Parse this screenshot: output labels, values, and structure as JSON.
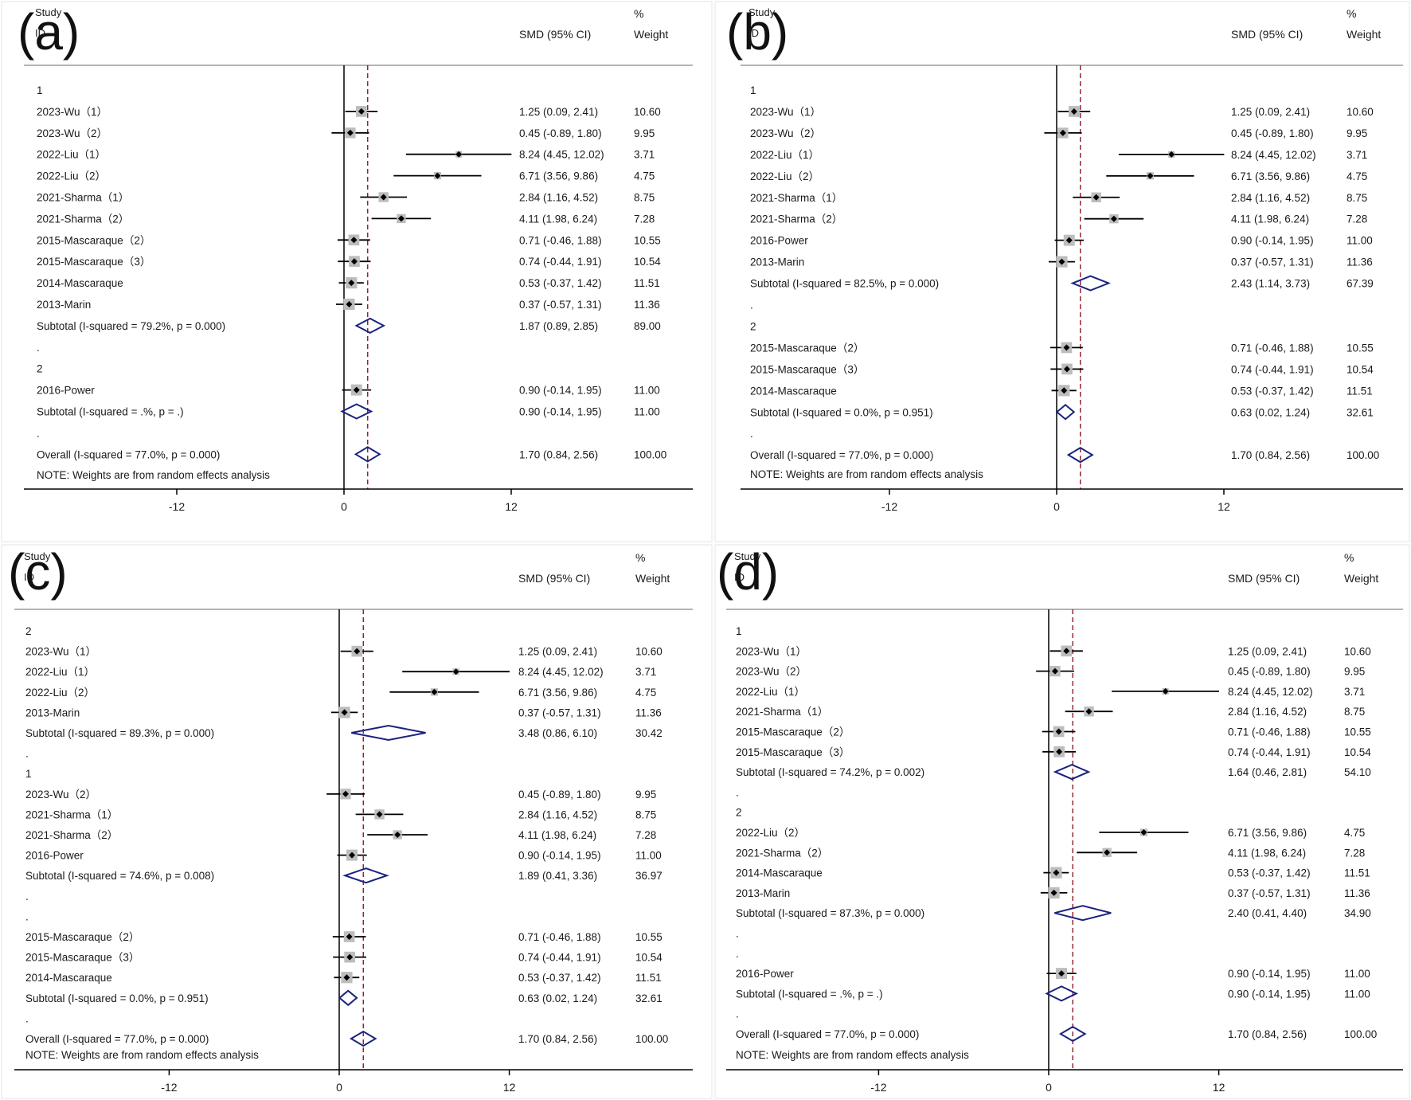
{
  "colors": {
    "diamond": "#1a237e",
    "ref_line": "#8b1a2b",
    "ci_line": "#000000",
    "box": "#bdbdbd",
    "axis": "#000000",
    "text": "#1a1a1a"
  },
  "chart_data": [
    {
      "type": "forest",
      "label": "(a)",
      "columns": {
        "study": "Study",
        "id": "ID",
        "effect": "SMD (95% CI)",
        "pct": "%",
        "weight": "Weight"
      },
      "xaxis": {
        "ticks": [
          -12,
          0,
          12
        ],
        "xlim": [
          -22,
          26
        ],
        "overall_ref": 1.7
      },
      "note": "NOTE: Weights are from random effects analysis",
      "rows": [
        {
          "kind": "group",
          "label": "1"
        },
        {
          "kind": "study",
          "label": "2023-Wu（1）",
          "est": 1.25,
          "lo": 0.09,
          "hi": 2.41,
          "effect_text": "1.25 (0.09, 2.41)",
          "weight": "10.60",
          "w": 10.6
        },
        {
          "kind": "study",
          "label": "2023-Wu（2）",
          "est": 0.45,
          "lo": -0.89,
          "hi": 1.8,
          "effect_text": "0.45 (-0.89, 1.80)",
          "weight": "9.95",
          "w": 9.95
        },
        {
          "kind": "study",
          "label": "2022-Liu（1）",
          "est": 8.24,
          "lo": 4.45,
          "hi": 12.02,
          "effect_text": "8.24 (4.45, 12.02)",
          "weight": "3.71",
          "w": 3.71
        },
        {
          "kind": "study",
          "label": "2022-Liu（2）",
          "est": 6.71,
          "lo": 3.56,
          "hi": 9.86,
          "effect_text": "6.71 (3.56, 9.86)",
          "weight": "4.75",
          "w": 4.75
        },
        {
          "kind": "study",
          "label": "2021-Sharma（1）",
          "est": 2.84,
          "lo": 1.16,
          "hi": 4.52,
          "effect_text": "2.84 (1.16, 4.52)",
          "weight": "8.75",
          "w": 8.75
        },
        {
          "kind": "study",
          "label": "2021-Sharma（2）",
          "est": 4.11,
          "lo": 1.98,
          "hi": 6.24,
          "effect_text": "4.11 (1.98, 6.24)",
          "weight": "7.28",
          "w": 7.28
        },
        {
          "kind": "study",
          "label": "2015-Mascaraque（2）",
          "est": 0.71,
          "lo": -0.46,
          "hi": 1.88,
          "effect_text": "0.71 (-0.46, 1.88)",
          "weight": "10.55",
          "w": 10.55
        },
        {
          "kind": "study",
          "label": "2015-Mascaraque（3）",
          "est": 0.74,
          "lo": -0.44,
          "hi": 1.91,
          "effect_text": "0.74 (-0.44, 1.91)",
          "weight": "10.54",
          "w": 10.54
        },
        {
          "kind": "study",
          "label": "2014-Mascaraque",
          "est": 0.53,
          "lo": -0.37,
          "hi": 1.42,
          "effect_text": "0.53 (-0.37, 1.42)",
          "weight": "11.51",
          "w": 11.51
        },
        {
          "kind": "study",
          "label": "2013-Marin",
          "est": 0.37,
          "lo": -0.57,
          "hi": 1.31,
          "effect_text": "0.37 (-0.57, 1.31)",
          "weight": "11.36",
          "w": 11.36
        },
        {
          "kind": "subtotal",
          "label": "Subtotal  (I-squared = 79.2%, p = 0.000)",
          "est": 1.87,
          "lo": 0.89,
          "hi": 2.85,
          "effect_text": "1.87 (0.89, 2.85)",
          "weight": "89.00"
        },
        {
          "kind": "dot",
          "label": "."
        },
        {
          "kind": "group",
          "label": "2"
        },
        {
          "kind": "study",
          "label": "2016-Power",
          "est": 0.9,
          "lo": -0.14,
          "hi": 1.95,
          "effect_text": "0.90 (-0.14, 1.95)",
          "weight": "11.00",
          "w": 11.0
        },
        {
          "kind": "subtotal",
          "label": "Subtotal  (I-squared = .%, p = .)",
          "est": 0.9,
          "lo": -0.14,
          "hi": 1.95,
          "effect_text": "0.90 (-0.14, 1.95)",
          "weight": "11.00"
        },
        {
          "kind": "dot",
          "label": "."
        },
        {
          "kind": "overall",
          "label": "Overall  (I-squared = 77.0%, p = 0.000)",
          "est": 1.7,
          "lo": 0.84,
          "hi": 2.56,
          "effect_text": "1.70 (0.84, 2.56)",
          "weight": "100.00"
        }
      ]
    },
    {
      "type": "forest",
      "label": "(b)",
      "columns": {
        "study": "Study",
        "id": "ID",
        "effect": "SMD (95% CI)",
        "pct": "%",
        "weight": "Weight"
      },
      "xaxis": {
        "ticks": [
          -12,
          0,
          12
        ],
        "xlim": [
          -22,
          26
        ],
        "overall_ref": 1.7
      },
      "note": "NOTE: Weights are from random effects analysis",
      "rows": [
        {
          "kind": "group",
          "label": "1"
        },
        {
          "kind": "study",
          "label": "2023-Wu（1）",
          "est": 1.25,
          "lo": 0.09,
          "hi": 2.41,
          "effect_text": "1.25 (0.09, 2.41)",
          "weight": "10.60",
          "w": 10.6
        },
        {
          "kind": "study",
          "label": "2023-Wu（2）",
          "est": 0.45,
          "lo": -0.89,
          "hi": 1.8,
          "effect_text": "0.45 (-0.89, 1.80)",
          "weight": "9.95",
          "w": 9.95
        },
        {
          "kind": "study",
          "label": "2022-Liu（1）",
          "est": 8.24,
          "lo": 4.45,
          "hi": 12.02,
          "effect_text": "8.24 (4.45, 12.02)",
          "weight": "3.71",
          "w": 3.71
        },
        {
          "kind": "study",
          "label": "2022-Liu（2）",
          "est": 6.71,
          "lo": 3.56,
          "hi": 9.86,
          "effect_text": "6.71 (3.56, 9.86)",
          "weight": "4.75",
          "w": 4.75
        },
        {
          "kind": "study",
          "label": "2021-Sharma（1）",
          "est": 2.84,
          "lo": 1.16,
          "hi": 4.52,
          "effect_text": "2.84 (1.16, 4.52)",
          "weight": "8.75",
          "w": 8.75
        },
        {
          "kind": "study",
          "label": "2021-Sharma（2）",
          "est": 4.11,
          "lo": 1.98,
          "hi": 6.24,
          "effect_text": "4.11 (1.98, 6.24)",
          "weight": "7.28",
          "w": 7.28
        },
        {
          "kind": "study",
          "label": "2016-Power",
          "est": 0.9,
          "lo": -0.14,
          "hi": 1.95,
          "effect_text": "0.90 (-0.14, 1.95)",
          "weight": "11.00",
          "w": 11.0
        },
        {
          "kind": "study",
          "label": "2013-Marin",
          "est": 0.37,
          "lo": -0.57,
          "hi": 1.31,
          "effect_text": "0.37 (-0.57, 1.31)",
          "weight": "11.36",
          "w": 11.36
        },
        {
          "kind": "subtotal",
          "label": "Subtotal  (I-squared = 82.5%, p = 0.000)",
          "est": 2.43,
          "lo": 1.14,
          "hi": 3.73,
          "effect_text": "2.43 (1.14, 3.73)",
          "weight": "67.39"
        },
        {
          "kind": "dot",
          "label": "."
        },
        {
          "kind": "group",
          "label": "2"
        },
        {
          "kind": "study",
          "label": "2015-Mascaraque（2）",
          "est": 0.71,
          "lo": -0.46,
          "hi": 1.88,
          "effect_text": "0.71 (-0.46, 1.88)",
          "weight": "10.55",
          "w": 10.55
        },
        {
          "kind": "study",
          "label": "2015-Mascaraque（3）",
          "est": 0.74,
          "lo": -0.44,
          "hi": 1.91,
          "effect_text": "0.74 (-0.44, 1.91)",
          "weight": "10.54",
          "w": 10.54
        },
        {
          "kind": "study",
          "label": "2014-Mascaraque",
          "est": 0.53,
          "lo": -0.37,
          "hi": 1.42,
          "effect_text": "0.53 (-0.37, 1.42)",
          "weight": "11.51",
          "w": 11.51
        },
        {
          "kind": "subtotal",
          "label": "Subtotal  (I-squared = 0.0%, p = 0.951)",
          "est": 0.63,
          "lo": 0.02,
          "hi": 1.24,
          "effect_text": "0.63 (0.02, 1.24)",
          "weight": "32.61"
        },
        {
          "kind": "dot",
          "label": "."
        },
        {
          "kind": "overall",
          "label": "Overall  (I-squared = 77.0%, p = 0.000)",
          "est": 1.7,
          "lo": 0.84,
          "hi": 2.56,
          "effect_text": "1.70 (0.84, 2.56)",
          "weight": "100.00"
        }
      ]
    },
    {
      "type": "forest",
      "label": "(c)",
      "columns": {
        "study": "Study",
        "id": "ID",
        "effect": "SMD (95% CI)",
        "pct": "%",
        "weight": "Weight"
      },
      "xaxis": {
        "ticks": [
          -12,
          0,
          12
        ],
        "xlim": [
          -22,
          26
        ],
        "overall_ref": 1.7
      },
      "note": "NOTE: Weights are from random effects analysis",
      "rows": [
        {
          "kind": "group",
          "label": "2"
        },
        {
          "kind": "study",
          "label": "2023-Wu（1）",
          "est": 1.25,
          "lo": 0.09,
          "hi": 2.41,
          "effect_text": "1.25 (0.09, 2.41)",
          "weight": "10.60",
          "w": 10.6
        },
        {
          "kind": "study",
          "label": "2022-Liu（1）",
          "est": 8.24,
          "lo": 4.45,
          "hi": 12.02,
          "effect_text": "8.24 (4.45, 12.02)",
          "weight": "3.71",
          "w": 3.71
        },
        {
          "kind": "study",
          "label": "2022-Liu（2）",
          "est": 6.71,
          "lo": 3.56,
          "hi": 9.86,
          "effect_text": "6.71 (3.56, 9.86)",
          "weight": "4.75",
          "w": 4.75
        },
        {
          "kind": "study",
          "label": "2013-Marin",
          "est": 0.37,
          "lo": -0.57,
          "hi": 1.31,
          "effect_text": "0.37 (-0.57, 1.31)",
          "weight": "11.36",
          "w": 11.36
        },
        {
          "kind": "subtotal",
          "label": "Subtotal  (I-squared = 89.3%, p = 0.000)",
          "est": 3.48,
          "lo": 0.86,
          "hi": 6.1,
          "effect_text": "3.48 (0.86, 6.10)",
          "weight": "30.42"
        },
        {
          "kind": "dot",
          "label": "."
        },
        {
          "kind": "group",
          "label": "1"
        },
        {
          "kind": "study",
          "label": "2023-Wu（2）",
          "est": 0.45,
          "lo": -0.89,
          "hi": 1.8,
          "effect_text": "0.45 (-0.89, 1.80)",
          "weight": "9.95",
          "w": 9.95
        },
        {
          "kind": "study",
          "label": "2021-Sharma（1）",
          "est": 2.84,
          "lo": 1.16,
          "hi": 4.52,
          "effect_text": "2.84 (1.16, 4.52)",
          "weight": "8.75",
          "w": 8.75
        },
        {
          "kind": "study",
          "label": "2021-Sharma（2）",
          "est": 4.11,
          "lo": 1.98,
          "hi": 6.24,
          "effect_text": "4.11 (1.98, 6.24)",
          "weight": "7.28",
          "w": 7.28
        },
        {
          "kind": "study",
          "label": "2016-Power",
          "est": 0.9,
          "lo": -0.14,
          "hi": 1.95,
          "effect_text": "0.90 (-0.14, 1.95)",
          "weight": "11.00",
          "w": 11.0
        },
        {
          "kind": "subtotal",
          "label": "Subtotal  (I-squared = 74.6%, p = 0.008)",
          "est": 1.89,
          "lo": 0.41,
          "hi": 3.36,
          "effect_text": "1.89 (0.41, 3.36)",
          "weight": "36.97"
        },
        {
          "kind": "dot",
          "label": "."
        },
        {
          "kind": "dot",
          "label": "."
        },
        {
          "kind": "study",
          "label": "2015-Mascaraque（2）",
          "est": 0.71,
          "lo": -0.46,
          "hi": 1.88,
          "effect_text": "0.71 (-0.46, 1.88)",
          "weight": "10.55",
          "w": 10.55
        },
        {
          "kind": "study",
          "label": "2015-Mascaraque（3）",
          "est": 0.74,
          "lo": -0.44,
          "hi": 1.91,
          "effect_text": "0.74 (-0.44, 1.91)",
          "weight": "10.54",
          "w": 10.54
        },
        {
          "kind": "study",
          "label": "2014-Mascaraque",
          "est": 0.53,
          "lo": -0.37,
          "hi": 1.42,
          "effect_text": "0.53 (-0.37, 1.42)",
          "weight": "11.51",
          "w": 11.51
        },
        {
          "kind": "subtotal",
          "label": "Subtotal  (I-squared = 0.0%, p = 0.951)",
          "est": 0.63,
          "lo": 0.02,
          "hi": 1.24,
          "effect_text": "0.63 (0.02, 1.24)",
          "weight": "32.61"
        },
        {
          "kind": "dot",
          "label": "."
        },
        {
          "kind": "overall",
          "label": "Overall  (I-squared = 77.0%, p = 0.000)",
          "est": 1.7,
          "lo": 0.84,
          "hi": 2.56,
          "effect_text": "1.70 (0.84, 2.56)",
          "weight": "100.00"
        }
      ]
    },
    {
      "type": "forest",
      "label": "(d)",
      "columns": {
        "study": "Study",
        "id": "ID",
        "effect": "SMD (95% CI)",
        "pct": "%",
        "weight": "Weight"
      },
      "xaxis": {
        "ticks": [
          -12,
          0,
          12
        ],
        "xlim": [
          -22,
          26
        ],
        "overall_ref": 1.7
      },
      "note": "NOTE: Weights are from random effects analysis",
      "rows": [
        {
          "kind": "group",
          "label": "1"
        },
        {
          "kind": "study",
          "label": "2023-Wu（1）",
          "est": 1.25,
          "lo": 0.09,
          "hi": 2.41,
          "effect_text": "1.25 (0.09, 2.41)",
          "weight": "10.60",
          "w": 10.6
        },
        {
          "kind": "study",
          "label": "2023-Wu（2）",
          "est": 0.45,
          "lo": -0.89,
          "hi": 1.8,
          "effect_text": "0.45 (-0.89, 1.80)",
          "weight": "9.95",
          "w": 9.95
        },
        {
          "kind": "study",
          "label": "2022-Liu（1）",
          "est": 8.24,
          "lo": 4.45,
          "hi": 12.02,
          "effect_text": "8.24 (4.45, 12.02)",
          "weight": "3.71",
          "w": 3.71
        },
        {
          "kind": "study",
          "label": "2021-Sharma（1）",
          "est": 2.84,
          "lo": 1.16,
          "hi": 4.52,
          "effect_text": "2.84 (1.16, 4.52)",
          "weight": "8.75",
          "w": 8.75
        },
        {
          "kind": "study",
          "label": "2015-Mascaraque（2）",
          "est": 0.71,
          "lo": -0.46,
          "hi": 1.88,
          "effect_text": "0.71 (-0.46, 1.88)",
          "weight": "10.55",
          "w": 10.55
        },
        {
          "kind": "study",
          "label": "2015-Mascaraque（3）",
          "est": 0.74,
          "lo": -0.44,
          "hi": 1.91,
          "effect_text": "0.74 (-0.44, 1.91)",
          "weight": "10.54",
          "w": 10.54
        },
        {
          "kind": "subtotal",
          "label": "Subtotal  (I-squared = 74.2%, p = 0.002)",
          "est": 1.64,
          "lo": 0.46,
          "hi": 2.81,
          "effect_text": "1.64 (0.46, 2.81)",
          "weight": "54.10"
        },
        {
          "kind": "dot",
          "label": "."
        },
        {
          "kind": "group",
          "label": "2"
        },
        {
          "kind": "study",
          "label": "2022-Liu（2）",
          "est": 6.71,
          "lo": 3.56,
          "hi": 9.86,
          "effect_text": "6.71 (3.56, 9.86)",
          "weight": "4.75",
          "w": 4.75
        },
        {
          "kind": "study",
          "label": "2021-Sharma（2）",
          "est": 4.11,
          "lo": 1.98,
          "hi": 6.24,
          "effect_text": "4.11 (1.98, 6.24)",
          "weight": "7.28",
          "w": 7.28
        },
        {
          "kind": "study",
          "label": "2014-Mascaraque",
          "est": 0.53,
          "lo": -0.37,
          "hi": 1.42,
          "effect_text": "0.53 (-0.37, 1.42)",
          "weight": "11.51",
          "w": 11.51
        },
        {
          "kind": "study",
          "label": "2013-Marin",
          "est": 0.37,
          "lo": -0.57,
          "hi": 1.31,
          "effect_text": "0.37 (-0.57, 1.31)",
          "weight": "11.36",
          "w": 11.36
        },
        {
          "kind": "subtotal",
          "label": "Subtotal  (I-squared = 87.3%, p = 0.000)",
          "est": 2.4,
          "lo": 0.41,
          "hi": 4.4,
          "effect_text": "2.40 (0.41, 4.40)",
          "weight": "34.90"
        },
        {
          "kind": "dot",
          "label": "."
        },
        {
          "kind": "dot",
          "label": "."
        },
        {
          "kind": "study",
          "label": "2016-Power",
          "est": 0.9,
          "lo": -0.14,
          "hi": 1.95,
          "effect_text": "0.90 (-0.14, 1.95)",
          "weight": "11.00",
          "w": 11.0
        },
        {
          "kind": "subtotal",
          "label": "Subtotal  (I-squared = .%, p = .)",
          "est": 0.9,
          "lo": -0.14,
          "hi": 1.95,
          "effect_text": "0.90 (-0.14, 1.95)",
          "weight": "11.00"
        },
        {
          "kind": "dot",
          "label": "."
        },
        {
          "kind": "overall",
          "label": "Overall  (I-squared = 77.0%, p = 0.000)",
          "est": 1.7,
          "lo": 0.84,
          "hi": 2.56,
          "effect_text": "1.70 (0.84, 2.56)",
          "weight": "100.00"
        }
      ]
    }
  ]
}
